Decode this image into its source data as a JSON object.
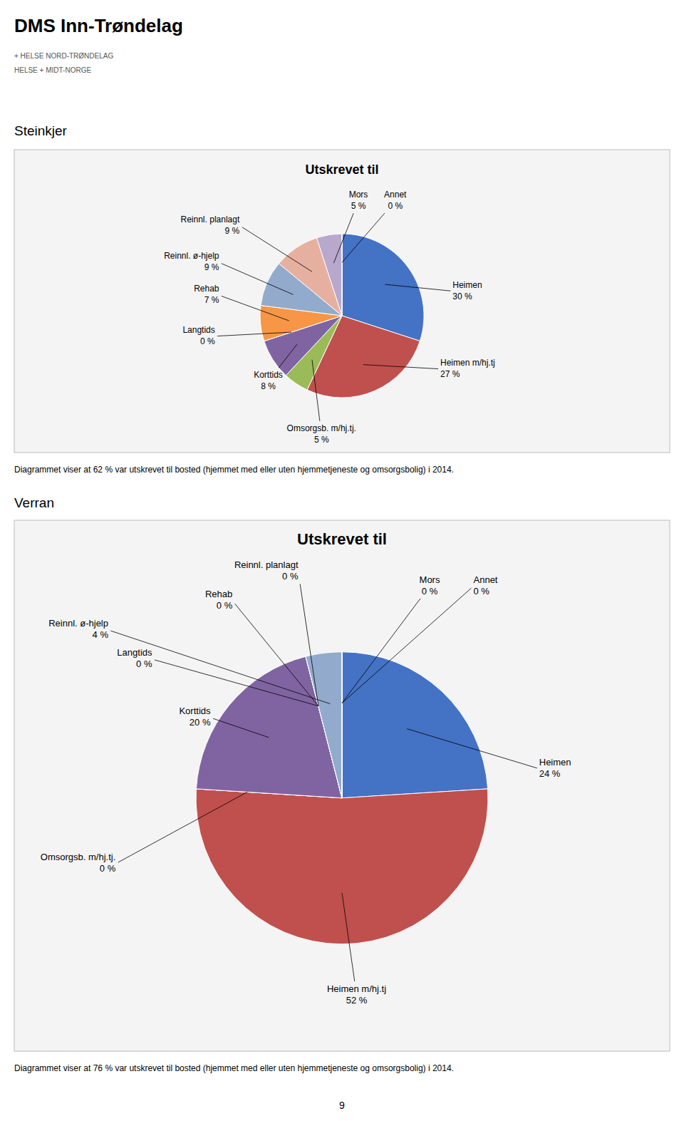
{
  "title": "DMS Inn-Trøndelag",
  "annotations": [
    "+ HELSE NORD-TRØNDELAG",
    "HELSE + MIDT-NORGE",
    "9"
  ],
  "chart_data": [
    {
      "type": "pie",
      "title": "Utskrevet til",
      "subtitle": "Steinkjer",
      "categories": [
        "Heimen",
        "Heimen m/hj.tj",
        "Omsorgsb. m/hj.tj.",
        "Korttids",
        "Langtids",
        "Rehab",
        "Reinnl. ø-hjelp",
        "Reinnl. planlagt",
        "Mors",
        "Annet"
      ],
      "values": [
        30,
        27,
        5,
        8,
        0,
        7,
        9,
        9,
        5,
        0
      ],
      "value_labels": [
        "30 %",
        "27 %",
        "5 %",
        "8 %",
        "0 %",
        "7 %",
        "9 %",
        "9 %",
        "5 %",
        "0 %"
      ],
      "colors": [
        "#4472C4",
        "#C0504D",
        "#9BBB59",
        "#8064A2",
        "#4BACC6",
        "#F79646",
        "#92ABCC",
        "#E6B0A0",
        "#B8A8CC",
        "#CCCCCC"
      ],
      "data_labels": true,
      "annotations": [
        "Diagrammet viser at 62 % var utskrevet til bosted (hjemmet med eller uten hjemmetjeneste og omsorgsbolig) i 2014."
      ]
    },
    {
      "type": "pie",
      "title": "Utskrevet til",
      "subtitle": "Verran",
      "categories": [
        "Heimen",
        "Heimen m/hj.tj",
        "Omsorgsb. m/hj.tj.",
        "Korttids",
        "Langtids",
        "Rehab",
        "Reinnl. planlagt",
        "Reinnl. ø-hjelp",
        "Mors",
        "Annet"
      ],
      "values": [
        24,
        52,
        0,
        20,
        0,
        0,
        0,
        4,
        0,
        0
      ],
      "value_labels": [
        "24 %",
        "52 %",
        "0 %",
        "20 %",
        "0 %",
        "0 %",
        "0 %",
        "4 %",
        "0 %",
        "0 %"
      ],
      "colors": [
        "#4472C4",
        "#C0504D",
        "#9BBB59",
        "#8064A2",
        "#4BACC6",
        "#F79646",
        "#E6B0A0",
        "#92ABCC",
        "#B8A8CC",
        "#CCCCCC"
      ],
      "data_labels": true,
      "annotations": [
        "Diagrammet viser at 76 % var utskrevet til bosted (hjemmet med eller uten hjemmetjeneste og omsorgsbolig) i 2014."
      ]
    }
  ]
}
